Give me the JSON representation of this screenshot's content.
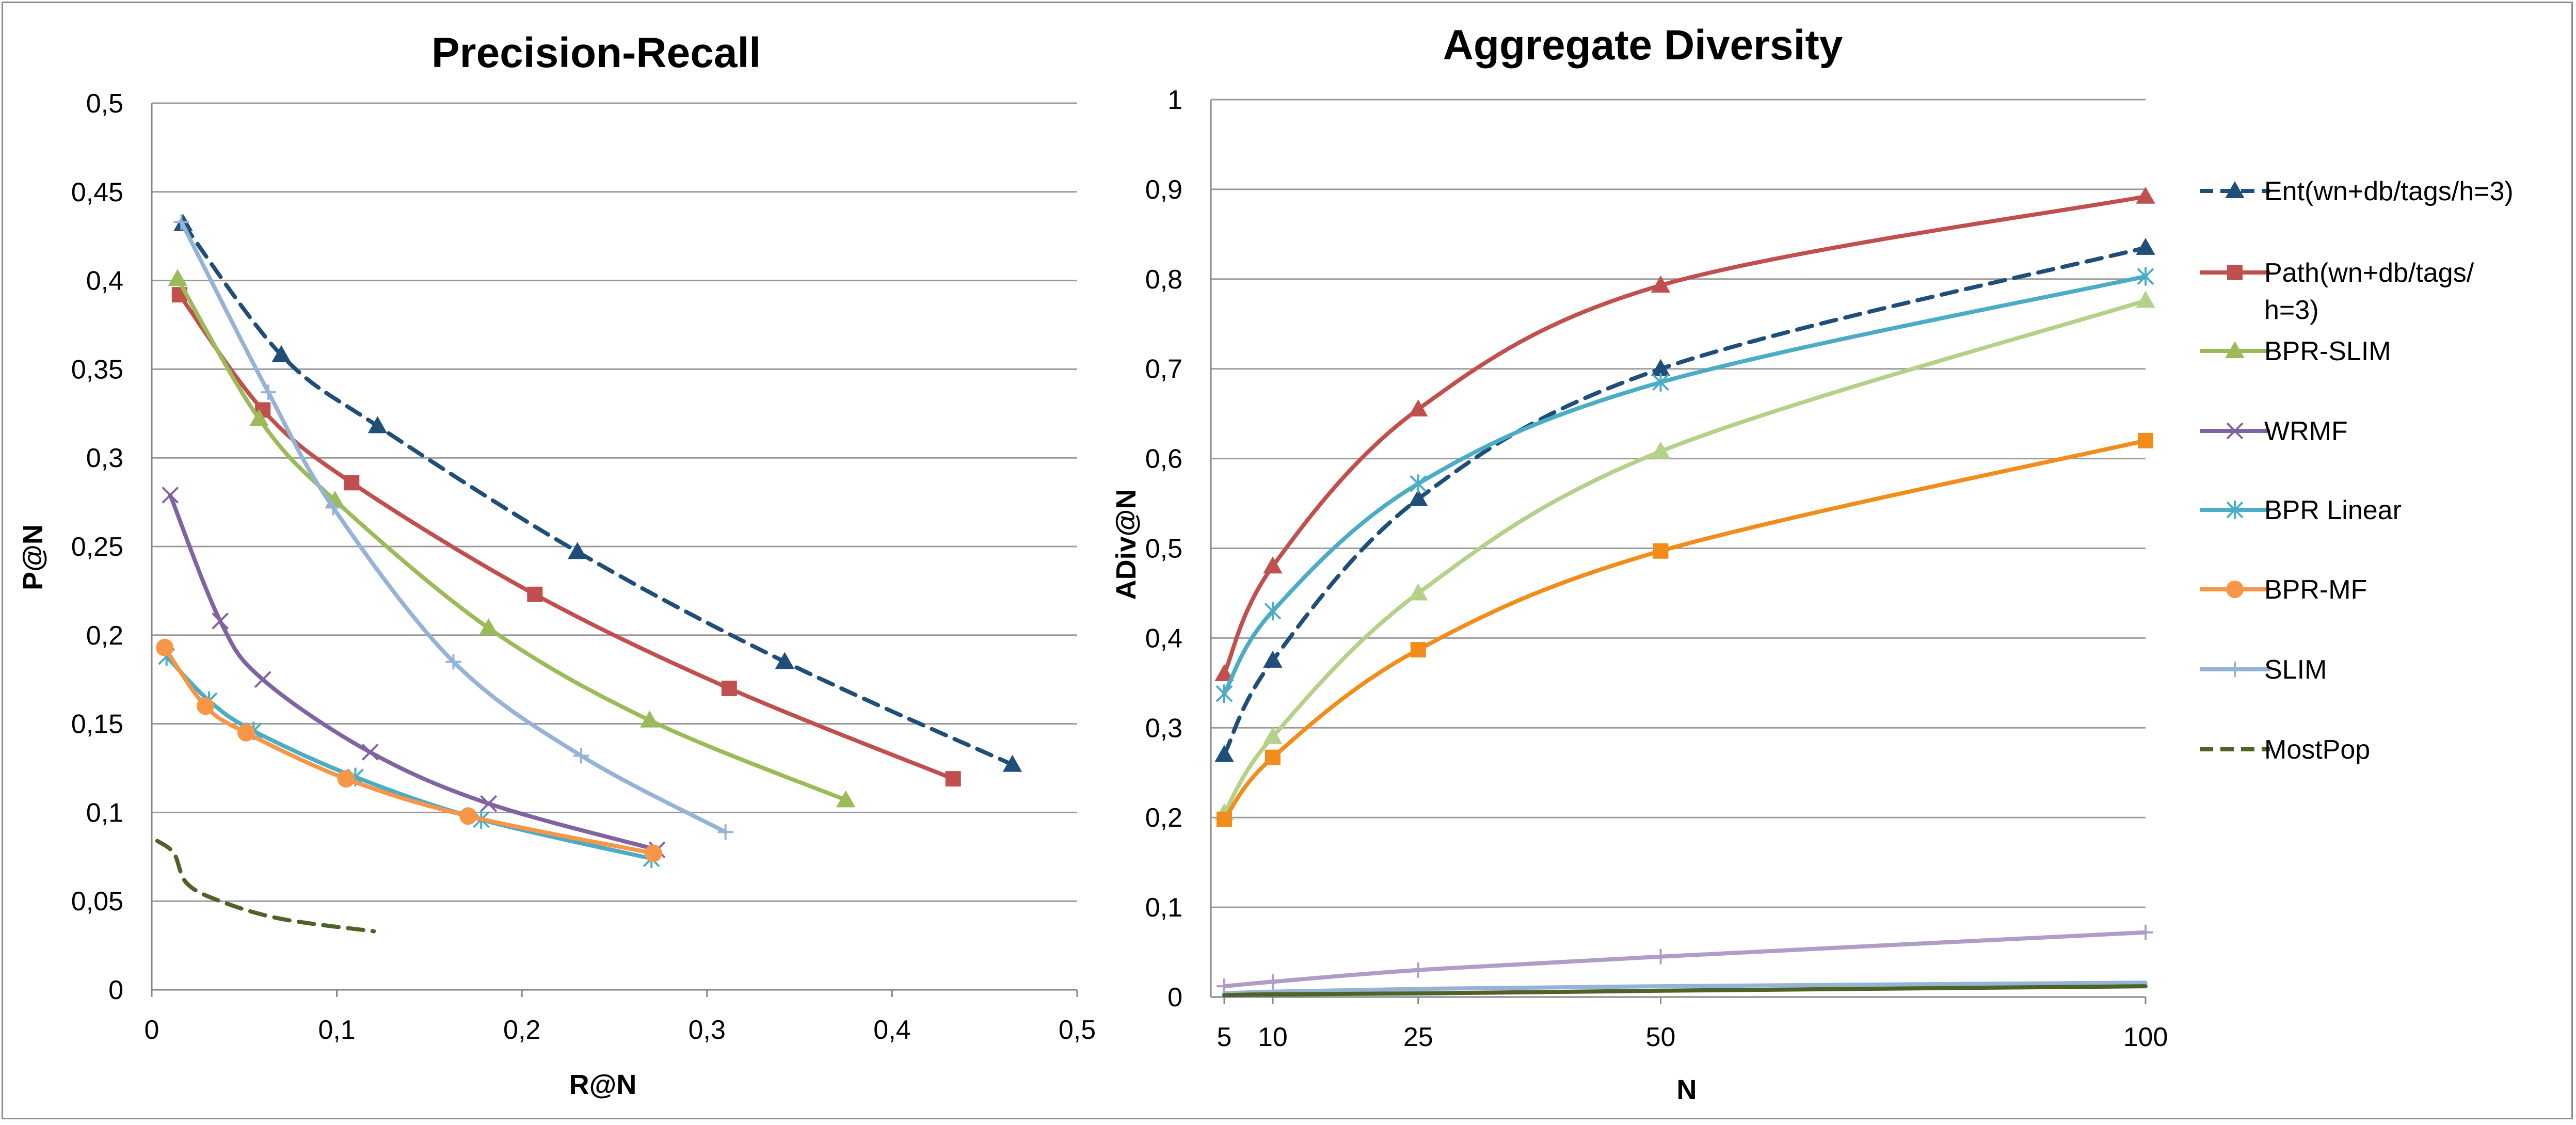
{
  "chart_data": [
    {
      "type": "line",
      "title": "Precision-Recall",
      "xlabel": "R@N",
      "ylabel": "P@N",
      "xlim": [
        0,
        0.5
      ],
      "ylim": [
        0,
        0.5
      ],
      "x_ticks": [
        "0",
        "0,1",
        "0,2",
        "0,3",
        "0,4",
        "0,5"
      ],
      "y_ticks": [
        "0",
        "0,05",
        "0,1",
        "0,15",
        "0,2",
        "0,25",
        "0,3",
        "0,35",
        "0,4",
        "0,45",
        "0,5"
      ],
      "grid": "horizontal",
      "series": [
        {
          "name": "Ent(wn+db/tags/h=3)",
          "color": "#1f4e79",
          "dash": true,
          "marker": "triangle",
          "points": [
            [
              0.017,
              0.432
            ],
            [
              0.07,
              0.358
            ],
            [
              0.122,
              0.318
            ],
            [
              0.23,
              0.247
            ],
            [
              0.342,
              0.185
            ],
            [
              0.465,
              0.127
            ]
          ]
        },
        {
          "name": "Path(wn+db/tags/h=3)",
          "color": "#c0504d",
          "dash": false,
          "marker": "square",
          "points": [
            [
              0.015,
              0.392
            ],
            [
              0.06,
              0.327
            ],
            [
              0.108,
              0.286
            ],
            [
              0.207,
              0.223
            ],
            [
              0.312,
              0.17
            ],
            [
              0.433,
              0.119
            ]
          ]
        },
        {
          "name": "BPR-SLIM",
          "color": "#9bbb59",
          "dash": false,
          "marker": "triangle",
          "points": [
            [
              0.014,
              0.401
            ],
            [
              0.058,
              0.322
            ],
            [
              0.099,
              0.276
            ],
            [
              0.182,
              0.204
            ],
            [
              0.269,
              0.152
            ],
            [
              0.375,
              0.107
            ]
          ]
        },
        {
          "name": "WRMF",
          "color": "#8064a2",
          "dash": false,
          "marker": "x",
          "points": [
            [
              0.01,
              0.279
            ],
            [
              0.037,
              0.208
            ],
            [
              0.06,
              0.175
            ],
            [
              0.118,
              0.134
            ],
            [
              0.182,
              0.105
            ],
            [
              0.273,
              0.079
            ]
          ]
        },
        {
          "name": "BPR Linear",
          "color": "#4bacc6",
          "dash": false,
          "marker": "star",
          "points": [
            [
              0.008,
              0.188
            ],
            [
              0.031,
              0.163
            ],
            [
              0.055,
              0.146
            ],
            [
              0.11,
              0.12
            ],
            [
              0.178,
              0.096
            ],
            [
              0.27,
              0.074
            ]
          ]
        },
        {
          "name": "BPR-MF",
          "color": "#f79646",
          "dash": false,
          "marker": "circle",
          "points": [
            [
              0.007,
              0.193
            ],
            [
              0.029,
              0.16
            ],
            [
              0.051,
              0.145
            ],
            [
              0.105,
              0.119
            ],
            [
              0.171,
              0.098
            ],
            [
              0.271,
              0.077
            ]
          ]
        },
        {
          "name": "SLIM",
          "color": "#95b3d7",
          "dash": false,
          "marker": "plus",
          "points": [
            [
              0.016,
              0.433
            ],
            [
              0.063,
              0.337
            ],
            [
              0.098,
              0.272
            ],
            [
              0.163,
              0.185
            ],
            [
              0.232,
              0.132
            ],
            [
              0.31,
              0.089
            ]
          ]
        },
        {
          "name": "MostPop",
          "color": "#4f6228",
          "dash": true,
          "marker": "none",
          "points": [
            [
              0.003,
              0.084
            ],
            [
              0.012,
              0.077
            ],
            [
              0.019,
              0.06
            ],
            [
              0.037,
              0.05
            ],
            [
              0.07,
              0.04
            ],
            [
              0.12,
              0.033
            ]
          ]
        }
      ]
    },
    {
      "type": "line",
      "title": "Aggregate Diversity",
      "xlabel": "N",
      "ylabel": "ADiv@N",
      "xlim": [
        5,
        100
      ],
      "ylim": [
        0,
        1
      ],
      "x_ticks": [
        "5",
        "10",
        "25",
        "50",
        "100"
      ],
      "y_ticks": [
        "0",
        "0,1",
        "0,2",
        "0,3",
        "0,4",
        "0,5",
        "0,6",
        "0,7",
        "0,8",
        "0,9",
        "1"
      ],
      "grid": "horizontal",
      "x": [
        5,
        10,
        25,
        50,
        100
      ],
      "series": [
        {
          "name": "Ent(wn+db/tags/h=3)",
          "color": "#1f4e79",
          "dash": true,
          "marker": "triangle",
          "values": [
            0.27,
            0.375,
            0.555,
            0.7,
            0.835
          ]
        },
        {
          "name": "Path(wn+db/tags/h=3)",
          "color": "#c0504d",
          "dash": false,
          "marker": "triangle",
          "values": [
            0.36,
            0.48,
            0.655,
            0.793,
            0.892
          ]
        },
        {
          "name": "BPR-SLIM",
          "color": "#b4d18a",
          "dash": false,
          "marker": "triangle",
          "values": [
            0.205,
            0.29,
            0.45,
            0.608,
            0.776
          ]
        },
        {
          "name": "WRMF",
          "color": "#b09cc8",
          "dash": false,
          "marker": "plus",
          "values": [
            0.012,
            0.017,
            0.03,
            0.045,
            0.072
          ]
        },
        {
          "name": "BPR Linear",
          "color": "#4bacc6",
          "dash": false,
          "marker": "star",
          "values": [
            0.338,
            0.43,
            0.572,
            0.685,
            0.803
          ]
        },
        {
          "name": "BPR-MF",
          "color": "#f28c1a",
          "dash": false,
          "marker": "square",
          "values": [
            0.198,
            0.267,
            0.387,
            0.497,
            0.62
          ]
        },
        {
          "name": "SLIM",
          "color": "#95b3d7",
          "dash": false,
          "marker": "none",
          "values": [
            0.004,
            0.006,
            0.009,
            0.012,
            0.016
          ]
        },
        {
          "name": "MostPop",
          "color": "#4f6228",
          "dash": false,
          "marker": "none",
          "values": [
            0.002,
            0.003,
            0.004,
            0.007,
            0.012
          ]
        }
      ]
    }
  ],
  "legend": {
    "items": [
      {
        "label_lines": [
          "Ent(wn+db/tags/h=3)"
        ],
        "color": "#1f4e79",
        "dash": true,
        "marker": "triangle"
      },
      {
        "label_lines": [
          "Path(wn+db/tags/",
          "h=3)"
        ],
        "color": "#c0504d",
        "dash": false,
        "marker": "square"
      },
      {
        "label_lines": [
          "BPR-SLIM"
        ],
        "color": "#9bbb59",
        "dash": false,
        "marker": "triangle"
      },
      {
        "label_lines": [
          "WRMF"
        ],
        "color": "#8064a2",
        "dash": false,
        "marker": "x"
      },
      {
        "label_lines": [
          "BPR Linear"
        ],
        "color": "#4bacc6",
        "dash": false,
        "marker": "star"
      },
      {
        "label_lines": [
          "BPR-MF"
        ],
        "color": "#f79646",
        "dash": false,
        "marker": "circle"
      },
      {
        "label_lines": [
          "SLIM"
        ],
        "color": "#95b3d7",
        "dash": false,
        "marker": "plus"
      },
      {
        "label_lines": [
          "MostPop"
        ],
        "color": "#4f6228",
        "dash": true,
        "marker": "none"
      }
    ]
  }
}
